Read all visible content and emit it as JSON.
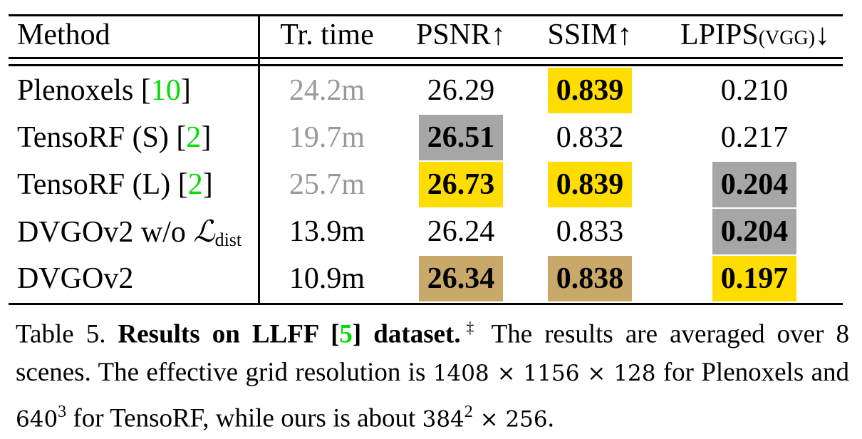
{
  "table": {
    "headers": {
      "method": "Method",
      "time": "Tr. time",
      "psnr": "PSNR↑",
      "ssim": "SSIM↑",
      "lpips": "LPIPS",
      "lpips_sub": "(VGG)",
      "lpips_arrow": "↓"
    },
    "rows": [
      {
        "method": "Plenoxels",
        "cite": "10",
        "time": "24.2m",
        "time_gray": true,
        "psnr": "26.29",
        "ssim": "0.839",
        "lpips": "0.210"
      },
      {
        "method": "TensoRF (S)",
        "cite": "2",
        "time": "19.7m",
        "time_gray": true,
        "psnr": "26.51",
        "ssim": "0.832",
        "lpips": "0.217"
      },
      {
        "method": "TensoRF (L)",
        "cite": "2",
        "time": "25.7m",
        "time_gray": true,
        "psnr": "26.73",
        "ssim": "0.839",
        "lpips": "0.204"
      },
      {
        "method": "DVGOv2 w/o ",
        "method_math": "ℒ",
        "method_sub": "dist",
        "time": "13.9m",
        "psnr": "26.24",
        "ssim": "0.833",
        "lpips": "0.204"
      },
      {
        "method": "DVGOv2",
        "time": "10.9m",
        "psnr": "26.34",
        "ssim": "0.838",
        "lpips": "0.197"
      }
    ],
    "highlight_colors": {
      "first": "#FFDD00",
      "second": "#A6A6A6",
      "third": "#C8A96A"
    },
    "highlights": [
      {
        "row": 0,
        "col": "ssim",
        "rank": "first"
      },
      {
        "row": 1,
        "col": "psnr",
        "rank": "second"
      },
      {
        "row": 2,
        "col": "psnr",
        "rank": "first"
      },
      {
        "row": 2,
        "col": "ssim",
        "rank": "first"
      },
      {
        "row": 2,
        "col": "lpips",
        "rank": "second"
      },
      {
        "row": 3,
        "col": "lpips",
        "rank": "second"
      },
      {
        "row": 4,
        "col": "psnr",
        "rank": "third"
      },
      {
        "row": 4,
        "col": "ssim",
        "rank": "third"
      },
      {
        "row": 4,
        "col": "lpips",
        "rank": "first"
      }
    ]
  },
  "caption": {
    "label": "Table 5.",
    "bold1": "Results on LLFF [",
    "cite": "5",
    "bold2": "] dataset.",
    "dagger": "‡",
    "text1": " The results are averaged over 8 scenes. The effective grid resolution is ",
    "res1": "1408 × 1156 × 128",
    "text2": " for Plenoxels and ",
    "res2": "640",
    "res2_exp": "3",
    "text3": " for TensoRF, while ours is about ",
    "res3": "384",
    "res3_exp": "2",
    "res3_tail": " × 256",
    "text4": "."
  }
}
